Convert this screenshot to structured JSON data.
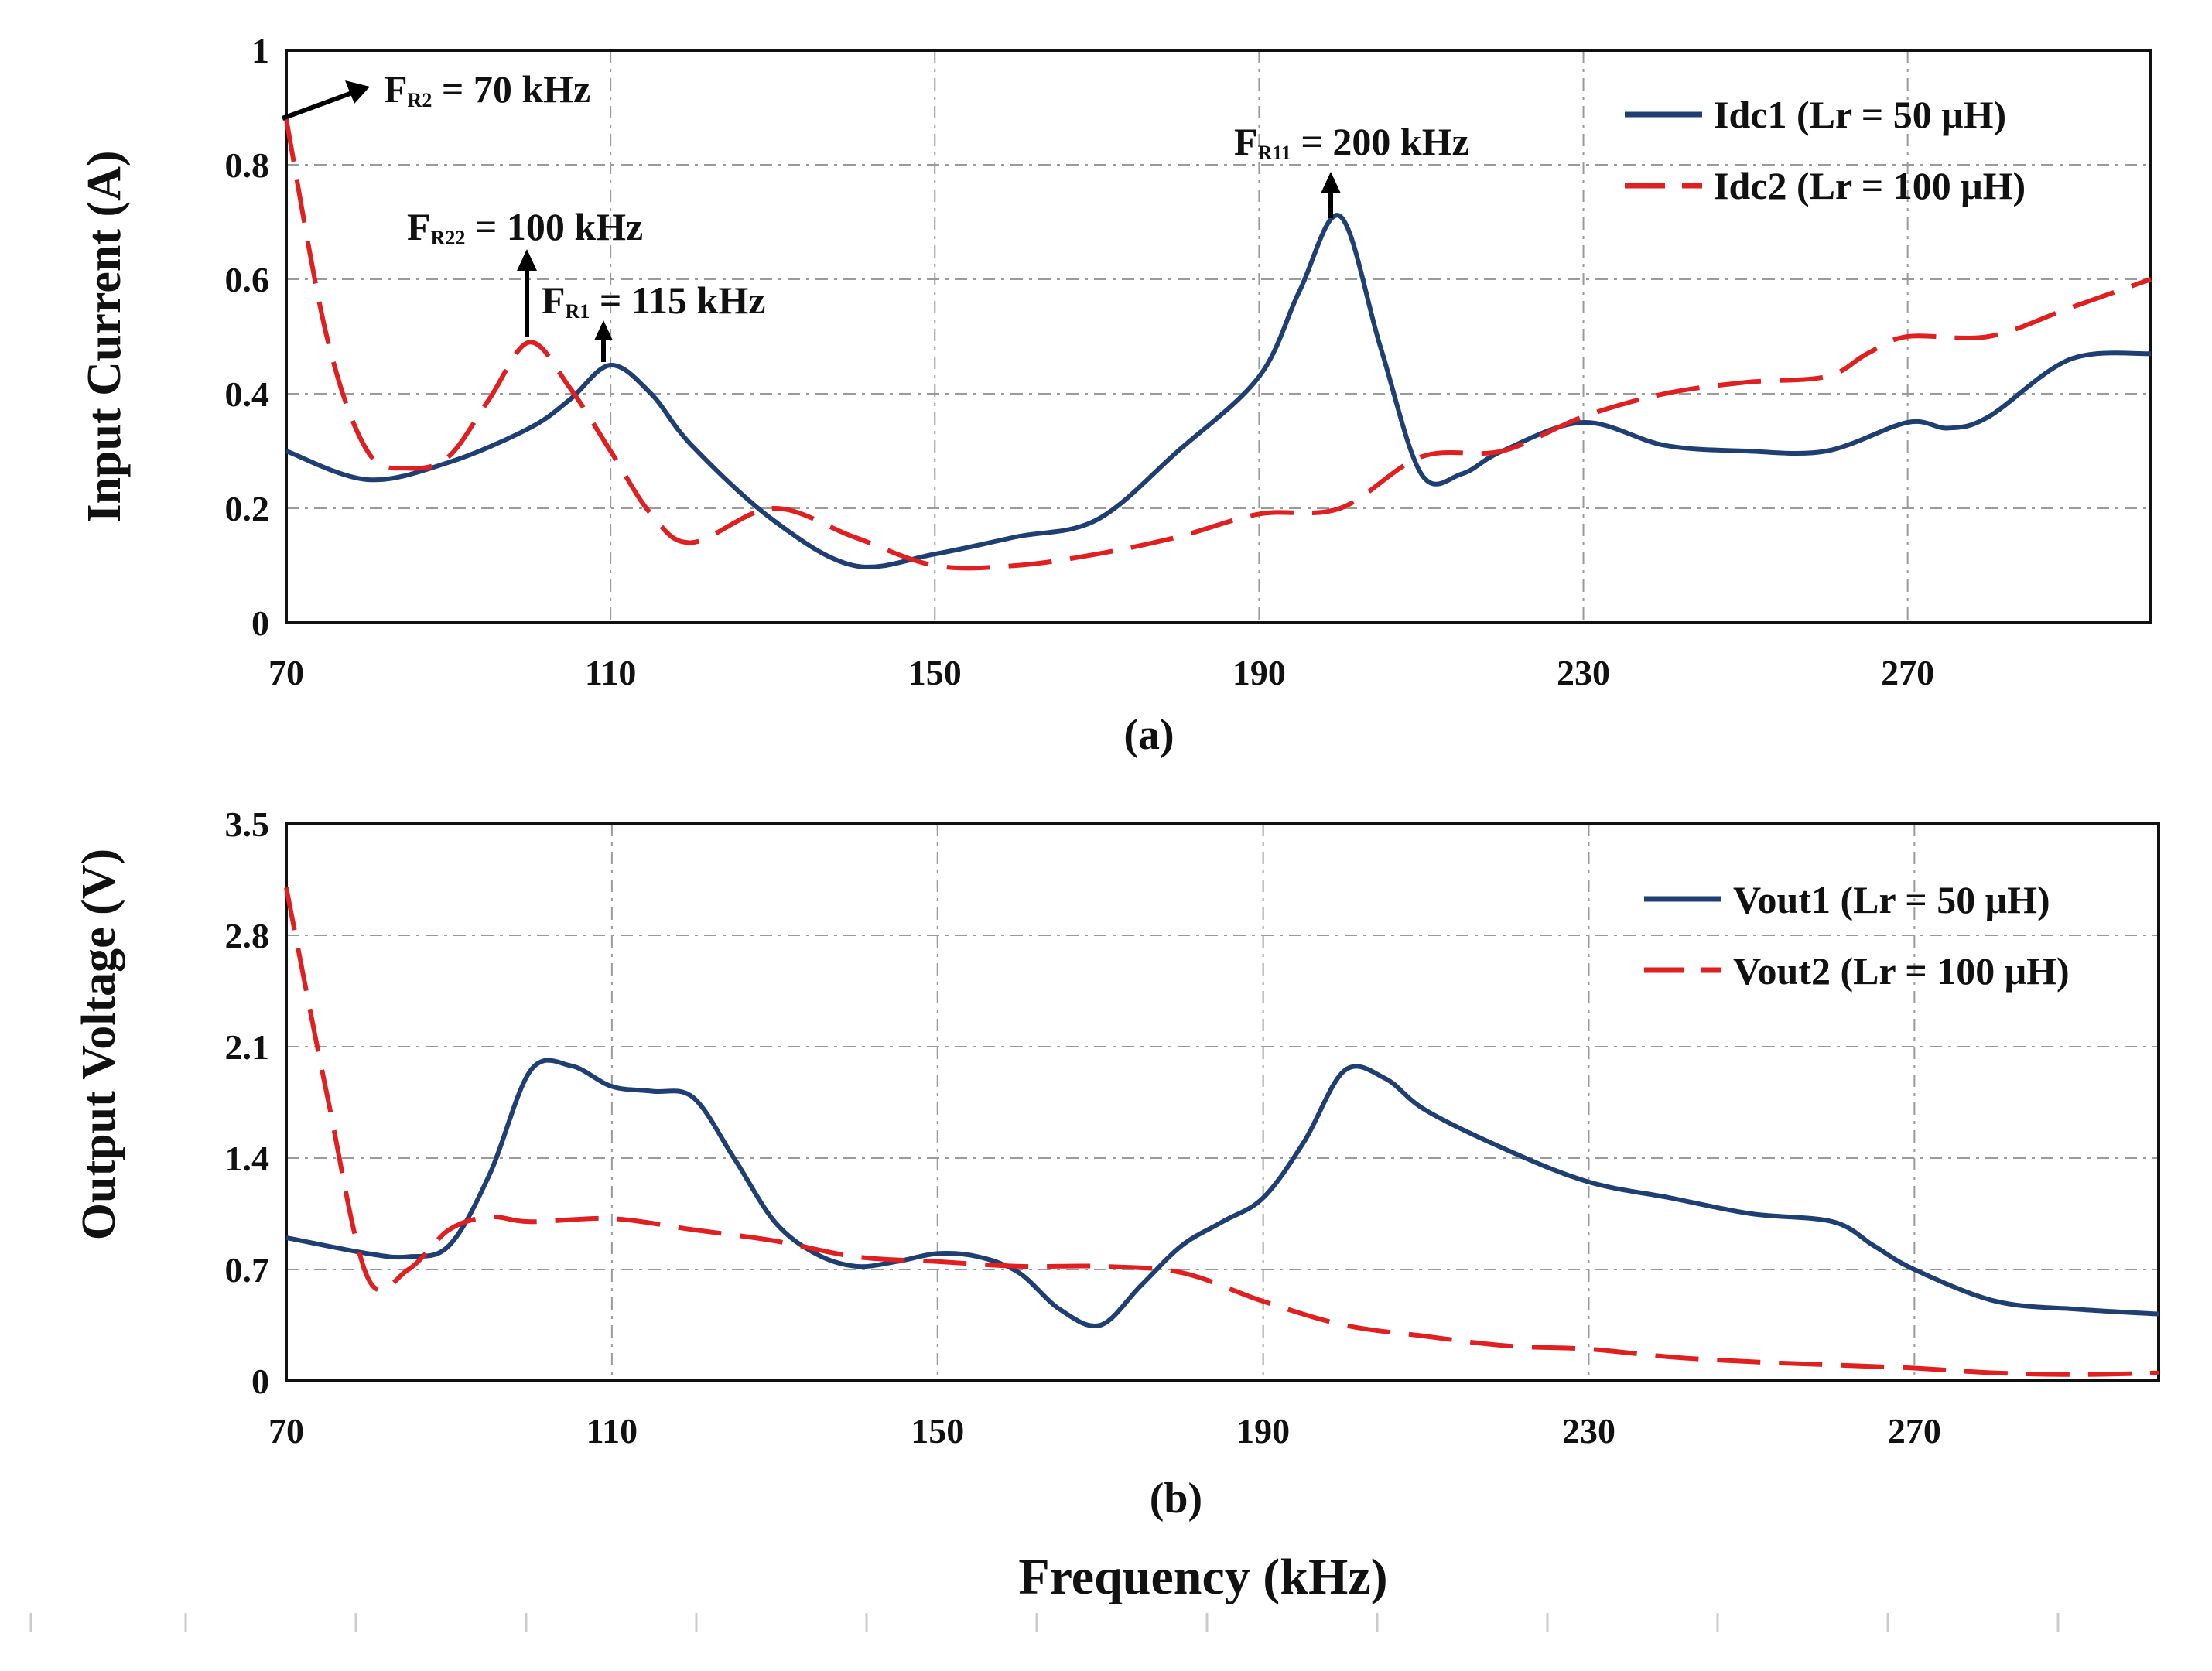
{
  "chart_data": [
    {
      "type": "line",
      "panel_label": "(a)",
      "ylabel": "Input Current (A)",
      "xlabel": "",
      "xlim": [
        70,
        300
      ],
      "ylim": [
        0,
        1
      ],
      "xticks": [
        70,
        110,
        150,
        190,
        230,
        270
      ],
      "yticks": [
        0,
        0.2,
        0.4,
        0.6,
        0.8,
        1
      ],
      "ytick_labels": [
        "0",
        "0.2",
        "0.4",
        "0.6",
        "0.8",
        "1"
      ],
      "grid": true,
      "legend_position": "top-right",
      "series": [
        {
          "name": "Idc1 (Lr = 50 μH)",
          "color": "#1f3f73",
          "style": "solid",
          "x": [
            70,
            80,
            90,
            100,
            105,
            110,
            115,
            120,
            130,
            140,
            150,
            160,
            170,
            180,
            190,
            195,
            200,
            205,
            210,
            215,
            220,
            230,
            240,
            250,
            260,
            270,
            275,
            280,
            290,
            300
          ],
          "y": [
            0.3,
            0.25,
            0.28,
            0.34,
            0.39,
            0.45,
            0.4,
            0.31,
            0.18,
            0.1,
            0.12,
            0.15,
            0.18,
            0.3,
            0.43,
            0.58,
            0.71,
            0.48,
            0.26,
            0.26,
            0.3,
            0.35,
            0.31,
            0.3,
            0.3,
            0.35,
            0.34,
            0.36,
            0.46,
            0.47
          ]
        },
        {
          "name": "Idc2 (Lr = 100 μH)",
          "color": "#e02020",
          "style": "dashed",
          "x": [
            70,
            75,
            80,
            85,
            90,
            95,
            100,
            105,
            110,
            115,
            120,
            130,
            140,
            150,
            160,
            170,
            180,
            190,
            200,
            210,
            220,
            230,
            240,
            250,
            260,
            265,
            270,
            280,
            290,
            300
          ],
          "y": [
            0.88,
            0.5,
            0.3,
            0.27,
            0.29,
            0.39,
            0.49,
            0.41,
            0.3,
            0.19,
            0.14,
            0.2,
            0.15,
            0.1,
            0.1,
            0.12,
            0.15,
            0.19,
            0.2,
            0.29,
            0.3,
            0.36,
            0.4,
            0.42,
            0.43,
            0.47,
            0.5,
            0.5,
            0.55,
            0.6
          ]
        }
      ],
      "annotations": [
        {
          "main": "F",
          "sub": "R2",
          "rest": " = 70 kHz"
        },
        {
          "main": "F",
          "sub": "R22",
          "rest": " = 100 kHz"
        },
        {
          "main": "F",
          "sub": "R1",
          "rest": " = 115 kHz"
        },
        {
          "main": "F",
          "sub": "R11",
          "rest": " = 200 kHz"
        }
      ]
    },
    {
      "type": "line",
      "panel_label": "(b)",
      "ylabel": "Output Voltage (V)",
      "xlabel": "Frequency (kHz)",
      "xlim": [
        70,
        300
      ],
      "ylim": [
        0,
        3.5
      ],
      "xticks": [
        70,
        110,
        150,
        190,
        230,
        270
      ],
      "yticks": [
        0,
        0.7,
        1.4,
        2.1,
        2.8,
        3.5
      ],
      "ytick_labels": [
        "0",
        "0.7",
        "1.4",
        "2.1",
        "2.8",
        "3.5"
      ],
      "grid": true,
      "legend_position": "top-right",
      "series": [
        {
          "name": "Vout1 (Lr = 50 μH)",
          "color": "#1f3f73",
          "style": "solid",
          "x": [
            70,
            80,
            85,
            90,
            95,
            100,
            105,
            110,
            115,
            120,
            125,
            130,
            135,
            140,
            145,
            150,
            155,
            160,
            165,
            170,
            175,
            180,
            185,
            190,
            195,
            200,
            205,
            210,
            220,
            230,
            240,
            250,
            260,
            265,
            270,
            280,
            290,
            300
          ],
          "y": [
            0.9,
            0.8,
            0.78,
            0.85,
            1.3,
            1.95,
            1.98,
            1.85,
            1.82,
            1.78,
            1.4,
            1.0,
            0.8,
            0.72,
            0.75,
            0.8,
            0.78,
            0.68,
            0.45,
            0.35,
            0.6,
            0.85,
            1.0,
            1.15,
            1.5,
            1.95,
            1.9,
            1.7,
            1.45,
            1.25,
            1.15,
            1.05,
            1.0,
            0.85,
            0.7,
            0.5,
            0.45,
            0.42
          ]
        },
        {
          "name": "Vout2 (Lr = 100 μH)",
          "color": "#e02020",
          "style": "dashed",
          "x": [
            70,
            75,
            80,
            85,
            90,
            95,
            100,
            110,
            120,
            130,
            140,
            150,
            160,
            170,
            180,
            190,
            200,
            210,
            220,
            230,
            240,
            250,
            260,
            270,
            280,
            290,
            300
          ],
          "y": [
            3.1,
            1.8,
            0.65,
            0.7,
            0.95,
            1.03,
            1.0,
            1.02,
            0.95,
            0.88,
            0.78,
            0.75,
            0.72,
            0.72,
            0.68,
            0.5,
            0.35,
            0.28,
            0.22,
            0.2,
            0.15,
            0.12,
            0.1,
            0.08,
            0.05,
            0.04,
            0.05
          ]
        }
      ]
    }
  ]
}
